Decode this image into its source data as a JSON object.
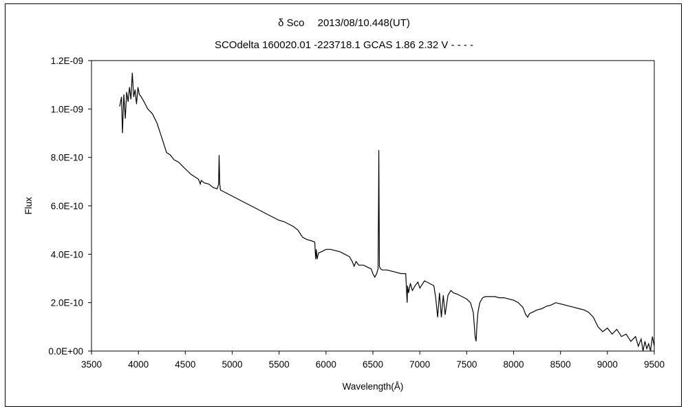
{
  "chart_data": {
    "type": "line",
    "title": "δ Sco　 2013/08/10.448(UT)",
    "subtitle": "SCOdelta 160020.01 -223718.1 GCAS 1.86 2.32 V - - - -",
    "xlabel": "Wavelength(Å)",
    "ylabel": "Flux",
    "xlim": [
      3500,
      9500
    ],
    "ylim": [
      0,
      1.2e-09
    ],
    "x_ticks": [
      3500,
      4000,
      4500,
      5000,
      5500,
      6000,
      6500,
      7000,
      7500,
      8000,
      8500,
      9000,
      9500
    ],
    "y_ticks": [
      {
        "value": 0,
        "label": "0.0E+00"
      },
      {
        "value": 2e-10,
        "label": "2.0E-10"
      },
      {
        "value": 4e-10,
        "label": "4.0E-10"
      },
      {
        "value": 6e-10,
        "label": "6.0E-10"
      },
      {
        "value": 8e-10,
        "label": "8.0E-10"
      },
      {
        "value": 1e-09,
        "label": "1.0E-09"
      },
      {
        "value": 1.2e-09,
        "label": "1.2E-09"
      }
    ],
    "grid": false,
    "legend": "none",
    "line_color": "#000000",
    "series": [
      {
        "x": [
          3800,
          3820,
          3830,
          3845,
          3860,
          3875,
          3890,
          3905,
          3920,
          3935,
          3950,
          3965,
          3980,
          3995,
          4010,
          4030,
          4060,
          4100,
          4150,
          4200,
          4250,
          4300,
          4340,
          4380,
          4430,
          4480,
          4520,
          4560,
          4600,
          4640,
          4660,
          4670,
          4700,
          4750,
          4800,
          4840,
          4855,
          4861,
          4867,
          4875,
          4900,
          4950,
          5000,
          5050,
          5100,
          5150,
          5200,
          5250,
          5300,
          5350,
          5400,
          5450,
          5500,
          5550,
          5600,
          5650,
          5700,
          5750,
          5800,
          5850,
          5880,
          5890,
          5896,
          5905,
          5920,
          5950,
          6000,
          6050,
          6100,
          6150,
          6200,
          6250,
          6280,
          6300,
          6320,
          6350,
          6400,
          6450,
          6480,
          6500,
          6520,
          6540,
          6555,
          6560,
          6563,
          6566,
          6570,
          6580,
          6600,
          6650,
          6700,
          6750,
          6800,
          6850,
          6865,
          6870,
          6880,
          6900,
          6920,
          6950,
          6980,
          7000,
          7050,
          7100,
          7150,
          7170,
          7190,
          7210,
          7230,
          7250,
          7270,
          7300,
          7330,
          7360,
          7400,
          7450,
          7500,
          7540,
          7570,
          7590,
          7600,
          7610,
          7620,
          7640,
          7670,
          7700,
          7750,
          7800,
          7850,
          7900,
          7950,
          8000,
          8050,
          8100,
          8130,
          8150,
          8170,
          8200,
          8250,
          8300,
          8350,
          8400,
          8450,
          8500,
          8550,
          8600,
          8650,
          8700,
          8750,
          8800,
          8850,
          8900,
          8950,
          9000,
          9050,
          9100,
          9150,
          9200,
          9250,
          9300,
          9330,
          9360,
          9380,
          9400,
          9420,
          9440,
          9460,
          9480,
          9500
        ],
        "y": [
          1.01e-09,
          1.05e-09,
          9e-10,
          1.06e-09,
          9.6e-10,
          1.07e-09,
          1.03e-09,
          1.09e-09,
          1.04e-09,
          1.15e-09,
          1.05e-09,
          1.08e-09,
          1.02e-09,
          1.09e-09,
          1.06e-09,
          1.05e-09,
          1.03e-09,
          1e-09,
          9.8e-10,
          9.4e-10,
          8.8e-10,
          8.2e-10,
          8.1e-10,
          7.9e-10,
          7.8e-10,
          7.6e-10,
          7.45e-10,
          7.3e-10,
          7.2e-10,
          7.1e-10,
          6.9e-10,
          7.05e-10,
          6.95e-10,
          6.9e-10,
          6.75e-10,
          6.7e-10,
          6.9e-10,
          8.1e-10,
          6.9e-10,
          6.65e-10,
          6.6e-10,
          6.5e-10,
          6.4e-10,
          6.3e-10,
          6.2e-10,
          6.1e-10,
          6e-10,
          5.9e-10,
          5.8e-10,
          5.7e-10,
          5.6e-10,
          5.5e-10,
          5.4e-10,
          5.35e-10,
          5.25e-10,
          5.15e-10,
          5e-10,
          4.7e-10,
          4.6e-10,
          4.55e-10,
          4.5e-10,
          3.8e-10,
          4.2e-10,
          3.8e-10,
          4.05e-10,
          4.1e-10,
          4.2e-10,
          4.2e-10,
          4.15e-10,
          4.1e-10,
          4e-10,
          3.9e-10,
          3.7e-10,
          3.5e-10,
          3.7e-10,
          3.55e-10,
          3.55e-10,
          3.45e-10,
          3.4e-10,
          3.2e-10,
          3.05e-10,
          3.2e-10,
          3.4e-10,
          6e-10,
          8.3e-10,
          6e-10,
          3.5e-10,
          3.4e-10,
          3.35e-10,
          3.35e-10,
          3.3e-10,
          3.25e-10,
          3.2e-10,
          3.2e-10,
          2e-10,
          2.7e-10,
          2.4e-10,
          2.8e-10,
          2.5e-10,
          2.7e-10,
          2.85e-10,
          2.6e-10,
          2.9e-10,
          2.8e-10,
          2.7e-10,
          2.2e-10,
          1.4e-10,
          2.4e-10,
          1.4e-10,
          2.3e-10,
          1.5e-10,
          2.3e-10,
          2.5e-10,
          2.4e-10,
          2.35e-10,
          2.25e-10,
          2.15e-10,
          2e-10,
          1.6e-10,
          6e-11,
          4e-11,
          1.1e-10,
          1.6e-10,
          2e-10,
          2.2e-10,
          2.25e-10,
          2.25e-10,
          2.25e-10,
          2.2e-10,
          2.2e-10,
          2.15e-10,
          2.1e-10,
          2e-10,
          1.8e-10,
          1.5e-10,
          1.4e-10,
          1.55e-10,
          1.6e-10,
          1.7e-10,
          1.75e-10,
          1.85e-10,
          1.9e-10,
          2e-10,
          1.95e-10,
          1.9e-10,
          1.85e-10,
          1.8e-10,
          1.75e-10,
          1.7e-10,
          1.6e-10,
          1.4e-10,
          1e-10,
          8e-11,
          9.5e-11,
          7e-11,
          9e-11,
          6e-11,
          7e-11,
          4e-11,
          6e-11,
          2e-11,
          5e-11,
          0,
          4e-11,
          1e-11,
          3e-11,
          0,
          6e-11,
          2e-11
        ]
      }
    ]
  }
}
